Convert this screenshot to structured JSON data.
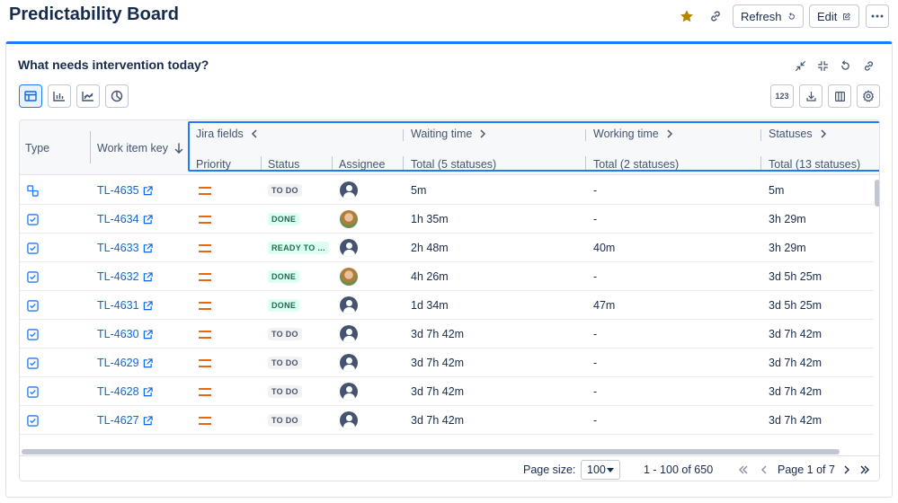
{
  "header": {
    "title": "Predictability Board",
    "refresh_label": "Refresh",
    "edit_label": "Edit"
  },
  "panel": {
    "title": "What needs intervention today?",
    "number_format_label": "123"
  },
  "columns": {
    "type": "Type",
    "work_item_key": "Work item key",
    "groups": [
      {
        "label": "Jira fields"
      },
      {
        "label": "Waiting time"
      },
      {
        "label": "Working time"
      },
      {
        "label": "Statuses"
      }
    ],
    "priority": "Priority",
    "status": "Status",
    "assignee": "Assignee",
    "waiting_total": "Total (5 statuses)",
    "working_total": "Total (2 statuses)",
    "statuses_total": "Total (13 statuses)"
  },
  "rows": [
    {
      "type": "subtask",
      "key": "TL-4635",
      "status": "TO DO",
      "status_kind": "todo",
      "avatar": "generic",
      "waiting": "5m",
      "working": "-",
      "statuses": "5m"
    },
    {
      "type": "task",
      "key": "TL-4634",
      "status": "DONE",
      "status_kind": "done",
      "avatar": "photo",
      "waiting": "1h 35m",
      "working": "-",
      "statuses": "3h 29m"
    },
    {
      "type": "task",
      "key": "TL-4633",
      "status": "READY TO ...",
      "status_kind": "ready",
      "avatar": "generic",
      "waiting": "2h 48m",
      "working": "40m",
      "statuses": "3h 29m"
    },
    {
      "type": "task",
      "key": "TL-4632",
      "status": "DONE",
      "status_kind": "done",
      "avatar": "photo",
      "waiting": "4h 26m",
      "working": "-",
      "statuses": "3d 5h 25m"
    },
    {
      "type": "task",
      "key": "TL-4631",
      "status": "DONE",
      "status_kind": "done",
      "avatar": "generic",
      "waiting": "1d 34m",
      "working": "47m",
      "statuses": "3d 5h 25m"
    },
    {
      "type": "task",
      "key": "TL-4630",
      "status": "TO DO",
      "status_kind": "todo",
      "avatar": "generic",
      "waiting": "3d 7h 42m",
      "working": "-",
      "statuses": "3d 7h 42m"
    },
    {
      "type": "task",
      "key": "TL-4629",
      "status": "TO DO",
      "status_kind": "todo",
      "avatar": "generic",
      "waiting": "3d 7h 42m",
      "working": "-",
      "statuses": "3d 7h 42m"
    },
    {
      "type": "task",
      "key": "TL-4628",
      "status": "TO DO",
      "status_kind": "todo",
      "avatar": "generic",
      "waiting": "3d 7h 42m",
      "working": "-",
      "statuses": "3d 7h 42m"
    },
    {
      "type": "task",
      "key": "TL-4627",
      "status": "TO DO",
      "status_kind": "todo",
      "avatar": "generic",
      "waiting": "3d 7h 42m",
      "working": "-",
      "statuses": "3d 7h 42m"
    }
  ],
  "footer": {
    "page_size_label": "Page size:",
    "page_size_value": "100",
    "range": "1 - 100 of 650",
    "page_info": "Page 1 of 7"
  },
  "colors": {
    "accent": "#1d7afc",
    "link": "#0c66e4",
    "priority": "#e56910",
    "star": "#b38600"
  }
}
